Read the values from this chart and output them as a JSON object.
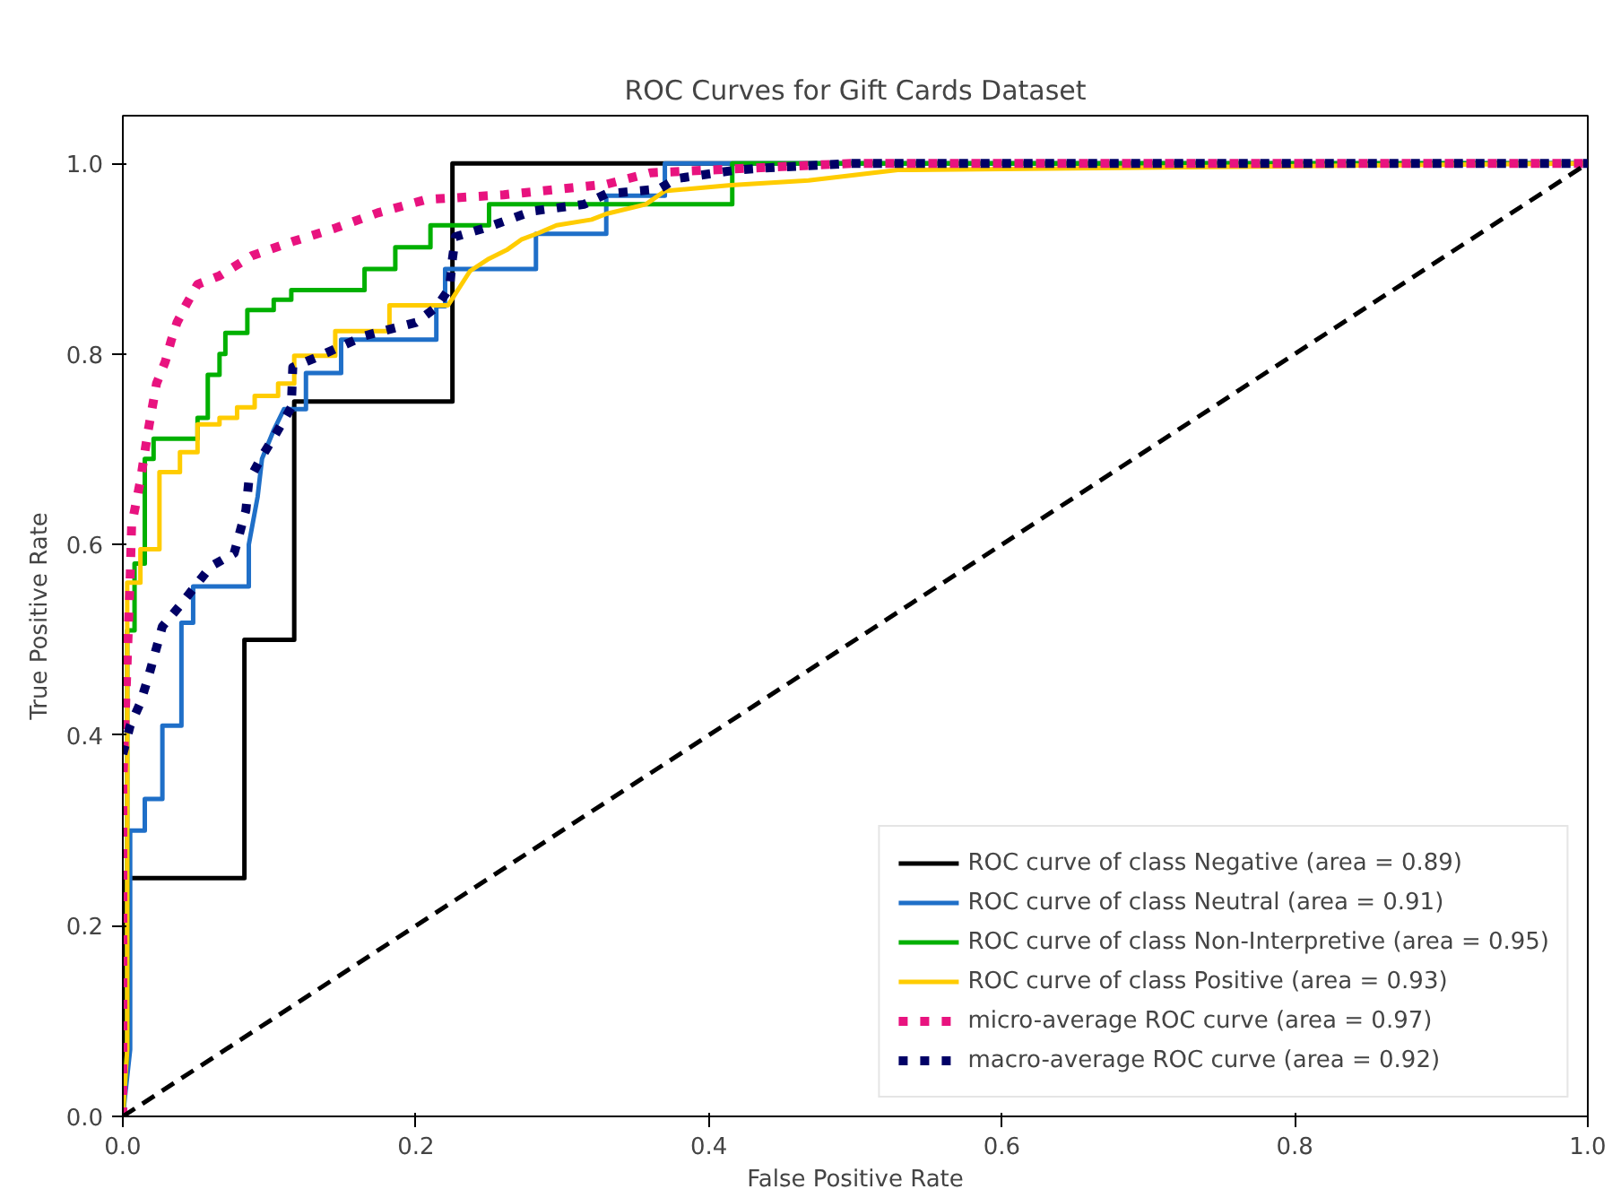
{
  "chart_data": {
    "type": "line",
    "title": "ROC Curves for Gift Cards Dataset",
    "xlabel": "False Positive Rate",
    "ylabel": "True Positive Rate",
    "xlim": [
      0,
      1
    ],
    "ylim": [
      0,
      1.05
    ],
    "xticks": [
      {
        "value": 0,
        "label": "0.0"
      },
      {
        "value": 0.2,
        "label": "0.2"
      },
      {
        "value": 0.4,
        "label": "0.4"
      },
      {
        "value": 0.6,
        "label": "0.6"
      },
      {
        "value": 0.8,
        "label": "0.8"
      },
      {
        "value": 1,
        "label": "1.0"
      }
    ],
    "yticks": [
      {
        "value": 0,
        "label": "0.0"
      },
      {
        "value": 0.2,
        "label": "0.2"
      },
      {
        "value": 0.4,
        "label": "0.4"
      },
      {
        "value": 0.6,
        "label": "0.6"
      },
      {
        "value": 0.8,
        "label": "0.8"
      },
      {
        "value": 1,
        "label": "1.0"
      }
    ],
    "grid": false,
    "legend": "bottom right",
    "marker": "none",
    "series": [
      {
        "name": "ROC curve of class Negative (area = 0.89)",
        "color": "#000000",
        "line_style": "solid",
        "x": [
          0,
          0,
          0.083,
          0.083,
          0.117,
          0.117,
          0.225,
          0.225,
          1
        ],
        "values": [
          0,
          0.25,
          0.25,
          0.5,
          0.5,
          0.75,
          0.75,
          1,
          1
        ]
      },
      {
        "name": "ROC curve of class Neutral (area = 0.91)",
        "color": "#1f6fc8",
        "line_style": "solid",
        "x": [
          0,
          0.005,
          0.005,
          0.015,
          0.015,
          0.027,
          0.027,
          0.04,
          0.04,
          0.048,
          0.048,
          0.086,
          0.086,
          0.092,
          0.095,
          0.103,
          0.11,
          0.125,
          0.125,
          0.149,
          0.149,
          0.214,
          0.214,
          0.22,
          0.22,
          0.282,
          0.282,
          0.33,
          0.33,
          0.37,
          0.37,
          1
        ],
        "values": [
          0,
          0.07,
          0.3,
          0.3,
          0.333,
          0.333,
          0.41,
          0.41,
          0.518,
          0.518,
          0.556,
          0.556,
          0.6,
          0.65,
          0.69,
          0.72,
          0.742,
          0.742,
          0.78,
          0.78,
          0.815,
          0.815,
          0.85,
          0.85,
          0.889,
          0.889,
          0.926,
          0.926,
          0.966,
          0.966,
          1,
          1
        ]
      },
      {
        "name": "ROC curve of class Non-Interpretive (area = 0.95)",
        "color": "#00b000",
        "line_style": "solid",
        "x": [
          0,
          0.003,
          0.003,
          0.008,
          0.008,
          0.015,
          0.015,
          0.021,
          0.021,
          0.051,
          0.051,
          0.058,
          0.058,
          0.066,
          0.066,
          0.07,
          0.07,
          0.085,
          0.085,
          0.103,
          0.103,
          0.115,
          0.115,
          0.165,
          0.165,
          0.186,
          0.186,
          0.21,
          0.21,
          0.25,
          0.25,
          0.416,
          0.416,
          1
        ],
        "values": [
          0,
          0.07,
          0.51,
          0.51,
          0.58,
          0.58,
          0.69,
          0.69,
          0.711,
          0.711,
          0.733,
          0.733,
          0.778,
          0.778,
          0.8,
          0.8,
          0.822,
          0.822,
          0.846,
          0.846,
          0.857,
          0.857,
          0.867,
          0.867,
          0.889,
          0.889,
          0.912,
          0.912,
          0.935,
          0.935,
          0.957,
          0.957,
          1,
          1
        ]
      },
      {
        "name": "ROC curve of class Positive (area = 0.93)",
        "color": "#ffcc00",
        "line_style": "solid",
        "x": [
          0,
          0.003,
          0.003,
          0.012,
          0.012,
          0.025,
          0.025,
          0.039,
          0.039,
          0.051,
          0.051,
          0.066,
          0.066,
          0.078,
          0.078,
          0.09,
          0.09,
          0.106,
          0.106,
          0.117,
          0.117,
          0.145,
          0.145,
          0.182,
          0.182,
          0.222,
          0.237,
          0.25,
          0.262,
          0.272,
          0.284,
          0.296,
          0.32,
          0.33,
          0.357,
          0.37,
          0.415,
          0.468,
          0.529,
          1
        ],
        "values": [
          0,
          0.07,
          0.56,
          0.56,
          0.595,
          0.595,
          0.676,
          0.676,
          0.697,
          0.697,
          0.726,
          0.726,
          0.733,
          0.733,
          0.744,
          0.744,
          0.756,
          0.756,
          0.769,
          0.769,
          0.798,
          0.798,
          0.824,
          0.824,
          0.851,
          0.851,
          0.887,
          0.9,
          0.909,
          0.92,
          0.927,
          0.935,
          0.941,
          0.947,
          0.957,
          0.971,
          0.977,
          0.982,
          0.993,
          1
        ]
      },
      {
        "name": "micro-average ROC curve (area = 0.97)",
        "color": "#e8137f",
        "line_style": "dotted",
        "x": [
          0,
          0,
          0.005,
          0.006,
          0.012,
          0.017,
          0.023,
          0.029,
          0.033,
          0.037,
          0.043,
          0.051,
          0.066,
          0.088,
          0.116,
          0.145,
          0.174,
          0.207,
          0.26,
          0.33,
          0.36,
          0.47,
          0.5,
          1
        ],
        "values": [
          0,
          0.35,
          0.565,
          0.62,
          0.667,
          0.717,
          0.769,
          0.792,
          0.814,
          0.833,
          0.851,
          0.873,
          0.882,
          0.903,
          0.918,
          0.932,
          0.948,
          0.962,
          0.967,
          0.978,
          0.99,
          0.998,
          1,
          1
        ]
      },
      {
        "name": "macro-average ROC curve (area = 0.92)",
        "color": "#000066",
        "line_style": "dotted",
        "x": [
          0,
          0.005,
          0.012,
          0.018,
          0.027,
          0.039,
          0.06,
          0.076,
          0.084,
          0.086,
          0.094,
          0.104,
          0.115,
          0.116,
          0.133,
          0.165,
          0.2,
          0.214,
          0.223,
          0.225,
          0.227,
          0.247,
          0.28,
          0.315,
          0.33,
          0.366,
          0.378,
          0.419,
          0.447,
          0.5,
          1
        ],
        "values": [
          0.38,
          0.41,
          0.434,
          0.464,
          0.514,
          0.536,
          0.577,
          0.591,
          0.636,
          0.667,
          0.69,
          0.715,
          0.744,
          0.786,
          0.797,
          0.819,
          0.833,
          0.849,
          0.869,
          0.9,
          0.923,
          0.932,
          0.95,
          0.957,
          0.968,
          0.973,
          0.984,
          0.993,
          0.996,
          1,
          1
        ]
      },
      {
        "color": "#000000",
        "line_style": "dashed",
        "x": [
          0,
          1
        ],
        "values": [
          0,
          1
        ]
      }
    ]
  }
}
